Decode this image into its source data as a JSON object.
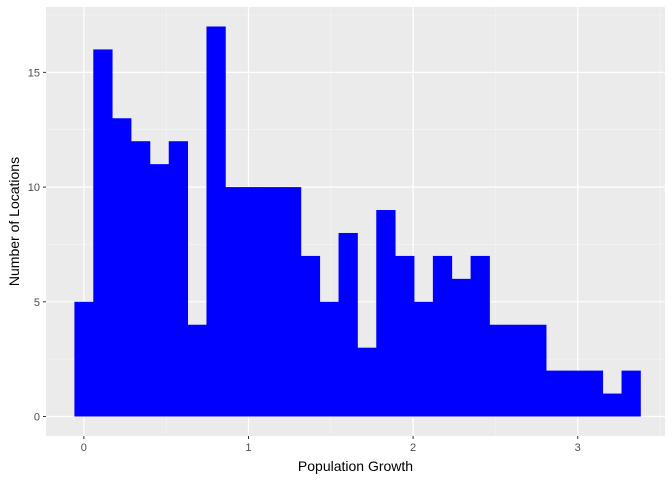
{
  "chart_data": {
    "type": "bar",
    "title": "",
    "xlabel": "Population Growth",
    "ylabel": "Number of Locations",
    "bin_width": 0.1146,
    "bin_start": -0.0574,
    "values": [
      5,
      16,
      13,
      12,
      11,
      12,
      4,
      17,
      10,
      10,
      10,
      10,
      7,
      5,
      8,
      3,
      9,
      7,
      5,
      7,
      6,
      7,
      4,
      4,
      4,
      2,
      2,
      2,
      1,
      2
    ],
    "xlim": [
      -0.23,
      3.53
    ],
    "ylim": [
      -0.85,
      17.85
    ],
    "x_ticks": [
      0,
      1,
      2,
      3
    ],
    "x_tick_labels": [
      "0",
      "1",
      "2",
      "3"
    ],
    "y_ticks": [
      0,
      5,
      10,
      15
    ],
    "y_tick_labels": [
      "0",
      "5",
      "10",
      "15"
    ],
    "grid": true,
    "legend": "none",
    "colors": {
      "bar_fill": "#0000FF",
      "panel_background": "#EBEBEB",
      "grid_major": "#FFFFFF",
      "grid_minor": "#F5F5F5",
      "tick_label": "#4D4D4D",
      "axis_title": "#000000"
    }
  }
}
